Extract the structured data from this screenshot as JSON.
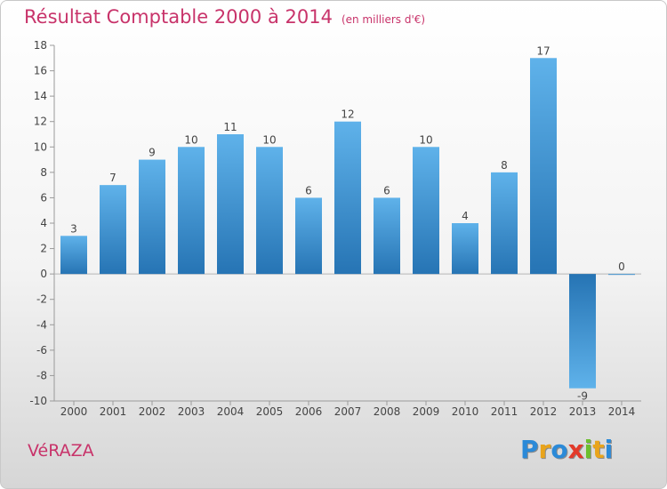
{
  "chart_data": {
    "type": "bar",
    "title": "Résultat Comptable 2000 à 2014",
    "subtitle": "(en milliers d'€)",
    "categories": [
      "2000",
      "2001",
      "2002",
      "2003",
      "2004",
      "2005",
      "2006",
      "2007",
      "2008",
      "2009",
      "2010",
      "2011",
      "2012",
      "2013",
      "2014"
    ],
    "values": [
      3,
      7,
      9,
      10,
      11,
      10,
      6,
      12,
      6,
      10,
      4,
      8,
      17,
      -9,
      0
    ],
    "ylim": [
      -10,
      18
    ],
    "yticks": [
      -10,
      -8,
      -6,
      -4,
      -2,
      0,
      2,
      4,
      6,
      8,
      10,
      12,
      14,
      16,
      18
    ],
    "xlabel": "",
    "ylabel": "",
    "grid": false
  },
  "commune": "VéRAZA",
  "logo": {
    "letters": [
      "P",
      "r",
      "o",
      "x",
      "i",
      "t",
      "i"
    ],
    "colors": [
      "#2b8ad8",
      "#e9a41b",
      "#2b8ad8",
      "#e33a2a",
      "#6cbf2e",
      "#e9a41b",
      "#2b8ad8"
    ]
  },
  "colors": {
    "bar_light": "#5fb2ea",
    "bar_dark": "#2674b4",
    "title": "#c8336a"
  }
}
